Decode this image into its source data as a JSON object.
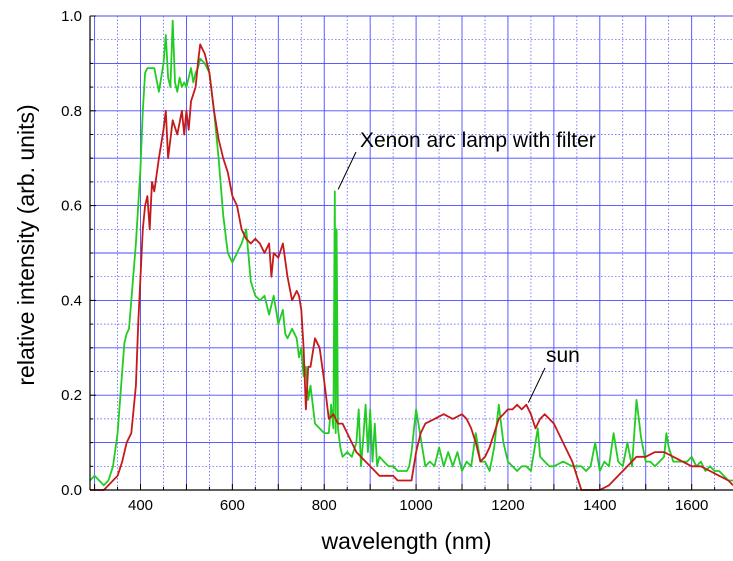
{
  "chart_data": {
    "type": "line",
    "xlabel": "wavelength (nm)",
    "ylabel": "relative intensity (arb. units)",
    "xlim": [
      290,
      1690
    ],
    "ylim": [
      0,
      1.0
    ],
    "x_ticks": [
      400,
      600,
      800,
      1000,
      1200,
      1400,
      1600
    ],
    "y_ticks": [
      0.0,
      0.2,
      0.4,
      0.6,
      0.8,
      1.0
    ],
    "x_tick_labels": [
      "400",
      "600",
      "800",
      "1000",
      "1200",
      "1400",
      "1600"
    ],
    "y_tick_labels": [
      "0.0",
      "0.2",
      "0.4",
      "0.6",
      "0.8",
      "1.0"
    ],
    "grid": true,
    "grid_color": "#4a4aff",
    "series": [
      {
        "key": "xenon",
        "color": "#22cc22",
        "x": [
          290,
          300,
          310,
          320,
          330,
          340,
          350,
          360,
          365,
          370,
          375,
          380,
          390,
          400,
          405,
          410,
          415,
          420,
          430,
          440,
          450,
          455,
          460,
          465,
          470,
          475,
          480,
          485,
          490,
          495,
          500,
          505,
          510,
          515,
          520,
          525,
          530,
          540,
          550,
          560,
          570,
          580,
          590,
          600,
          610,
          620,
          630,
          640,
          650,
          660,
          670,
          680,
          690,
          700,
          710,
          715,
          720,
          730,
          740,
          745,
          750,
          755,
          760,
          765,
          770,
          780,
          790,
          800,
          810,
          815,
          820,
          823,
          825,
          827,
          830,
          835,
          840,
          850,
          860,
          870,
          875,
          880,
          885,
          890,
          895,
          900,
          905,
          910,
          915,
          920,
          930,
          940,
          950,
          960,
          970,
          980,
          985,
          990,
          1000,
          1010,
          1020,
          1030,
          1040,
          1050,
          1060,
          1070,
          1080,
          1090,
          1100,
          1110,
          1120,
          1130,
          1140,
          1150,
          1160,
          1170,
          1180,
          1190,
          1200,
          1210,
          1220,
          1230,
          1240,
          1250,
          1260,
          1265,
          1270,
          1280,
          1290,
          1300,
          1320,
          1340,
          1360,
          1370,
          1380,
          1390,
          1400,
          1410,
          1420,
          1430,
          1440,
          1450,
          1460,
          1470,
          1475,
          1480,
          1490,
          1500,
          1510,
          1520,
          1530,
          1540,
          1545,
          1550,
          1560,
          1570,
          1580,
          1590,
          1600,
          1610,
          1620,
          1630,
          1640,
          1650,
          1660,
          1670,
          1680,
          1690
        ],
        "y": [
          0.02,
          0.03,
          0.02,
          0.01,
          0.02,
          0.05,
          0.12,
          0.25,
          0.31,
          0.33,
          0.34,
          0.4,
          0.52,
          0.68,
          0.8,
          0.88,
          0.89,
          0.89,
          0.89,
          0.84,
          0.9,
          0.96,
          0.87,
          0.85,
          0.99,
          0.86,
          0.84,
          0.87,
          0.85,
          0.86,
          0.85,
          0.87,
          0.89,
          0.86,
          0.88,
          0.89,
          0.91,
          0.9,
          0.88,
          0.8,
          0.7,
          0.58,
          0.5,
          0.48,
          0.5,
          0.52,
          0.55,
          0.44,
          0.41,
          0.4,
          0.41,
          0.37,
          0.41,
          0.35,
          0.38,
          0.33,
          0.32,
          0.34,
          0.32,
          0.28,
          0.3,
          0.24,
          0.26,
          0.19,
          0.22,
          0.14,
          0.13,
          0.12,
          0.12,
          0.18,
          0.13,
          0.63,
          0.12,
          0.55,
          0.13,
          0.09,
          0.07,
          0.08,
          0.07,
          0.1,
          0.17,
          0.05,
          0.11,
          0.18,
          0.08,
          0.17,
          0.06,
          0.14,
          0.05,
          0.07,
          0.06,
          0.05,
          0.05,
          0.04,
          0.04,
          0.04,
          0.05,
          0.08,
          0.17,
          0.11,
          0.05,
          0.06,
          0.05,
          0.09,
          0.05,
          0.08,
          0.05,
          0.08,
          0.04,
          0.06,
          0.05,
          0.12,
          0.06,
          0.06,
          0.04,
          0.09,
          0.18,
          0.1,
          0.06,
          0.05,
          0.04,
          0.05,
          0.05,
          0.04,
          0.1,
          0.13,
          0.07,
          0.06,
          0.05,
          0.05,
          0.06,
          0.05,
          0.05,
          0.04,
          0.05,
          0.1,
          0.04,
          0.06,
          0.05,
          0.12,
          0.06,
          0.05,
          0.1,
          0.05,
          0.12,
          0.19,
          0.11,
          0.06,
          0.06,
          0.05,
          0.06,
          0.07,
          0.12,
          0.09,
          0.06,
          0.06,
          0.06,
          0.06,
          0.07,
          0.05,
          0.06,
          0.04,
          0.05,
          0.04,
          0.04,
          0.03,
          0.02,
          0.02
        ]
      },
      {
        "key": "sun",
        "color": "#c41a1a",
        "x": [
          290,
          300,
          310,
          320,
          330,
          340,
          350,
          360,
          370,
          380,
          390,
          395,
          400,
          405,
          410,
          415,
          420,
          425,
          430,
          440,
          450,
          455,
          460,
          470,
          480,
          490,
          495,
          500,
          505,
          510,
          520,
          525,
          530,
          540,
          550,
          560,
          570,
          580,
          590,
          600,
          610,
          620,
          630,
          640,
          650,
          660,
          670,
          680,
          685,
          690,
          700,
          710,
          720,
          730,
          740,
          745,
          750,
          755,
          760,
          765,
          770,
          780,
          790,
          800,
          810,
          820,
          830,
          840,
          850,
          860,
          870,
          880,
          890,
          900,
          910,
          920,
          930,
          940,
          950,
          960,
          970,
          980,
          990,
          1000,
          1010,
          1020,
          1040,
          1060,
          1080,
          1100,
          1110,
          1120,
          1130,
          1140,
          1150,
          1160,
          1170,
          1180,
          1190,
          1200,
          1210,
          1220,
          1230,
          1240,
          1250,
          1260,
          1270,
          1280,
          1290,
          1300,
          1310,
          1320,
          1330,
          1340,
          1350,
          1360,
          1370,
          1380,
          1400,
          1420,
          1440,
          1460,
          1480,
          1500,
          1520,
          1540,
          1560,
          1580,
          1600,
          1620,
          1640,
          1660,
          1680,
          1690
        ],
        "y": [
          0.0,
          0.0,
          0.0,
          0.0,
          0.01,
          0.02,
          0.03,
          0.06,
          0.1,
          0.12,
          0.22,
          0.35,
          0.45,
          0.55,
          0.6,
          0.62,
          0.55,
          0.65,
          0.63,
          0.7,
          0.76,
          0.8,
          0.7,
          0.78,
          0.75,
          0.8,
          0.75,
          0.8,
          0.76,
          0.82,
          0.85,
          0.9,
          0.94,
          0.92,
          0.88,
          0.8,
          0.74,
          0.7,
          0.67,
          0.62,
          0.6,
          0.55,
          0.53,
          0.52,
          0.53,
          0.52,
          0.5,
          0.52,
          0.45,
          0.5,
          0.49,
          0.52,
          0.45,
          0.4,
          0.42,
          0.41,
          0.38,
          0.3,
          0.17,
          0.26,
          0.26,
          0.32,
          0.3,
          0.23,
          0.15,
          0.16,
          0.14,
          0.14,
          0.12,
          0.1,
          0.08,
          0.07,
          0.06,
          0.05,
          0.04,
          0.03,
          0.03,
          0.03,
          0.03,
          0.02,
          0.02,
          0.02,
          0.02,
          0.08,
          0.12,
          0.14,
          0.15,
          0.16,
          0.15,
          0.16,
          0.15,
          0.13,
          0.1,
          0.06,
          0.07,
          0.09,
          0.12,
          0.15,
          0.16,
          0.17,
          0.17,
          0.18,
          0.17,
          0.18,
          0.16,
          0.13,
          0.15,
          0.16,
          0.15,
          0.14,
          0.12,
          0.1,
          0.08,
          0.06,
          0.03,
          0.0,
          0.0,
          0.0,
          0.0,
          0.01,
          0.03,
          0.05,
          0.07,
          0.07,
          0.08,
          0.08,
          0.07,
          0.06,
          0.05,
          0.05,
          0.04,
          0.03,
          0.02,
          0.01
        ]
      }
    ],
    "annotations": [
      {
        "text": "Xenon arc lamp with filter",
        "target": [
          826,
          0.63
        ]
      },
      {
        "text": "sun",
        "target": [
          1240,
          0.18
        ]
      }
    ]
  }
}
